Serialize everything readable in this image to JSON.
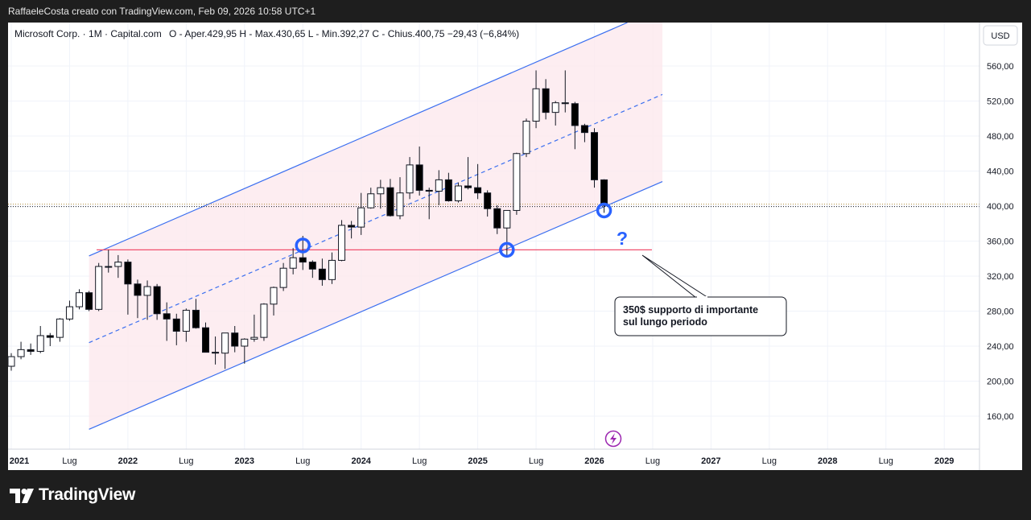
{
  "header": {
    "title": "RaffaeleCosta creato con TradingView.com, Feb 09, 2026 10:58 UTC+1"
  },
  "legend": {
    "symbol": "Microsoft Corp. · 1M · Capital.com",
    "ohlc": "O - Aper.429,95  H - Max.430,65  L - Min.392,27  C - Chius.400,75  −29,43 (−6,84%)"
  },
  "currency_button": "USD",
  "annotation": {
    "line1": "350$ supporto di importante",
    "line2": "sul lungo periodo"
  },
  "question_mark": "?",
  "footer": {
    "brand": "TradingView"
  },
  "colors": {
    "channel_line": "#3b6ff0",
    "support_line": "#f0506e",
    "channel_fill": "#fce8ee",
    "up_candle": "#ffffff",
    "down_candle": "#000000",
    "marker": "#2962ff"
  },
  "chart_data": {
    "type": "candlestick",
    "title": "Microsoft Corp. · 1M · Capital.com",
    "y_axis": {
      "ticks": [
        160,
        200,
        240,
        280,
        320,
        360,
        400,
        440,
        480,
        520,
        560
      ],
      "tick_labels": [
        "160,00",
        "200,00",
        "240,00",
        "280,00",
        "320,00",
        "360,00",
        "400,00",
        "440,00",
        "480,00",
        "520,00",
        "560,00"
      ],
      "current_price": 400.75,
      "scale": "linear"
    },
    "x_axis": {
      "labels": [
        "2021",
        "Lug",
        "2022",
        "Lug",
        "2023",
        "Lug",
        "2024",
        "Lug",
        "2025",
        "Lug",
        "2026",
        "Lug",
        "2027",
        "Lug",
        "2028",
        "Lug",
        "2029"
      ]
    },
    "candles": [
      {
        "t": "2021-01",
        "o": 217,
        "h": 232,
        "l": 212,
        "c": 228
      },
      {
        "t": "2021-02",
        "o": 228,
        "h": 245,
        "l": 225,
        "c": 236
      },
      {
        "t": "2021-03",
        "o": 236,
        "h": 243,
        "l": 230,
        "c": 234
      },
      {
        "t": "2021-04",
        "o": 234,
        "h": 263,
        "l": 232,
        "c": 252
      },
      {
        "t": "2021-05",
        "o": 252,
        "h": 255,
        "l": 240,
        "c": 250
      },
      {
        "t": "2021-06",
        "o": 250,
        "h": 272,
        "l": 245,
        "c": 271
      },
      {
        "t": "2021-07",
        "o": 271,
        "h": 292,
        "l": 269,
        "c": 285
      },
      {
        "t": "2021-08",
        "o": 285,
        "h": 305,
        "l": 282,
        "c": 301
      },
      {
        "t": "2021-09",
        "o": 301,
        "h": 303,
        "l": 280,
        "c": 282
      },
      {
        "t": "2021-10",
        "o": 282,
        "h": 335,
        "l": 280,
        "c": 331
      },
      {
        "t": "2021-11",
        "o": 331,
        "h": 350,
        "l": 324,
        "c": 331
      },
      {
        "t": "2021-12",
        "o": 331,
        "h": 344,
        "l": 318,
        "c": 336
      },
      {
        "t": "2022-01",
        "o": 336,
        "h": 339,
        "l": 276,
        "c": 311
      },
      {
        "t": "2022-02",
        "o": 311,
        "h": 316,
        "l": 272,
        "c": 298
      },
      {
        "t": "2022-03",
        "o": 298,
        "h": 315,
        "l": 270,
        "c": 308
      },
      {
        "t": "2022-04",
        "o": 308,
        "h": 311,
        "l": 270,
        "c": 277
      },
      {
        "t": "2022-05",
        "o": 277,
        "h": 290,
        "l": 246,
        "c": 271
      },
      {
        "t": "2022-06",
        "o": 271,
        "h": 277,
        "l": 241,
        "c": 257
      },
      {
        "t": "2022-07",
        "o": 257,
        "h": 283,
        "l": 245,
        "c": 281
      },
      {
        "t": "2022-08",
        "o": 281,
        "h": 294,
        "l": 260,
        "c": 261
      },
      {
        "t": "2022-09",
        "o": 261,
        "h": 267,
        "l": 233,
        "c": 233
      },
      {
        "t": "2022-10",
        "o": 233,
        "h": 251,
        "l": 219,
        "c": 232
      },
      {
        "t": "2022-11",
        "o": 232,
        "h": 255,
        "l": 214,
        "c": 255
      },
      {
        "t": "2022-12",
        "o": 255,
        "h": 263,
        "l": 233,
        "c": 240
      },
      {
        "t": "2023-01",
        "o": 240,
        "h": 249,
        "l": 220,
        "c": 248
      },
      {
        "t": "2023-02",
        "o": 248,
        "h": 276,
        "l": 245,
        "c": 250
      },
      {
        "t": "2023-03",
        "o": 250,
        "h": 289,
        "l": 246,
        "c": 288
      },
      {
        "t": "2023-04",
        "o": 288,
        "h": 308,
        "l": 275,
        "c": 307
      },
      {
        "t": "2023-05",
        "o": 307,
        "h": 335,
        "l": 303,
        "c": 329
      },
      {
        "t": "2023-06",
        "o": 329,
        "h": 352,
        "l": 322,
        "c": 341
      },
      {
        "t": "2023-07",
        "o": 341,
        "h": 366,
        "l": 327,
        "c": 336
      },
      {
        "t": "2023-08",
        "o": 336,
        "h": 338,
        "l": 318,
        "c": 328
      },
      {
        "t": "2023-09",
        "o": 328,
        "h": 340,
        "l": 309,
        "c": 316
      },
      {
        "t": "2023-10",
        "o": 316,
        "h": 347,
        "l": 311,
        "c": 338
      },
      {
        "t": "2023-11",
        "o": 338,
        "h": 384,
        "l": 337,
        "c": 378
      },
      {
        "t": "2023-12",
        "o": 378,
        "h": 383,
        "l": 363,
        "c": 376
      },
      {
        "t": "2024-01",
        "o": 376,
        "h": 415,
        "l": 367,
        "c": 398
      },
      {
        "t": "2024-02",
        "o": 398,
        "h": 421,
        "l": 397,
        "c": 414
      },
      {
        "t": "2024-03",
        "o": 414,
        "h": 430,
        "l": 397,
        "c": 421
      },
      {
        "t": "2024-04",
        "o": 421,
        "h": 431,
        "l": 388,
        "c": 389
      },
      {
        "t": "2024-05",
        "o": 389,
        "h": 433,
        "l": 385,
        "c": 415
      },
      {
        "t": "2024-06",
        "o": 415,
        "h": 456,
        "l": 408,
        "c": 447
      },
      {
        "t": "2024-07",
        "o": 447,
        "h": 468,
        "l": 412,
        "c": 418
      },
      {
        "t": "2024-08",
        "o": 418,
        "h": 421,
        "l": 385,
        "c": 417
      },
      {
        "t": "2024-09",
        "o": 417,
        "h": 441,
        "l": 401,
        "c": 430
      },
      {
        "t": "2024-10",
        "o": 430,
        "h": 438,
        "l": 405,
        "c": 406
      },
      {
        "t": "2024-11",
        "o": 406,
        "h": 427,
        "l": 404,
        "c": 423
      },
      {
        "t": "2024-12",
        "o": 423,
        "h": 456,
        "l": 419,
        "c": 421
      },
      {
        "t": "2025-01",
        "o": 421,
        "h": 448,
        "l": 408,
        "c": 415
      },
      {
        "t": "2025-02",
        "o": 415,
        "h": 418,
        "l": 388,
        "c": 397
      },
      {
        "t": "2025-03",
        "o": 397,
        "h": 401,
        "l": 368,
        "c": 375
      },
      {
        "t": "2025-04",
        "o": 375,
        "h": 395,
        "l": 344,
        "c": 395
      },
      {
        "t": "2025-05",
        "o": 395,
        "h": 461,
        "l": 390,
        "c": 460
      },
      {
        "t": "2025-06",
        "o": 460,
        "h": 500,
        "l": 456,
        "c": 497
      },
      {
        "t": "2025-07",
        "o": 497,
        "h": 555,
        "l": 489,
        "c": 534
      },
      {
        "t": "2025-08",
        "o": 534,
        "h": 545,
        "l": 499,
        "c": 507
      },
      {
        "t": "2025-09",
        "o": 507,
        "h": 520,
        "l": 492,
        "c": 518
      },
      {
        "t": "2025-10",
        "o": 518,
        "h": 555,
        "l": 507,
        "c": 517
      },
      {
        "t": "2025-11",
        "o": 517,
        "h": 519,
        "l": 465,
        "c": 492
      },
      {
        "t": "2025-12",
        "o": 492,
        "h": 494,
        "l": 473,
        "c": 484
      },
      {
        "t": "2026-01",
        "o": 484,
        "h": 489,
        "l": 421,
        "c": 430
      },
      {
        "t": "2026-02",
        "o": 429.95,
        "h": 430.65,
        "l": 392.27,
        "c": 400.75
      }
    ],
    "annotations": [
      {
        "type": "horizontal_line",
        "value": 350,
        "label": "350$ supporto di importante sul lungo periodo"
      },
      {
        "type": "parallel_channel",
        "from": "2021-09",
        "to": "2026-08",
        "lower": [
          145,
          428
        ],
        "upper": [
          343,
          627
        ]
      },
      {
        "type": "circle_marker",
        "t": "2023-07",
        "price": 355
      },
      {
        "type": "circle_marker",
        "t": "2025-04",
        "price": 350
      },
      {
        "type": "circle_marker",
        "t": "2026-02",
        "price": 395
      }
    ]
  }
}
